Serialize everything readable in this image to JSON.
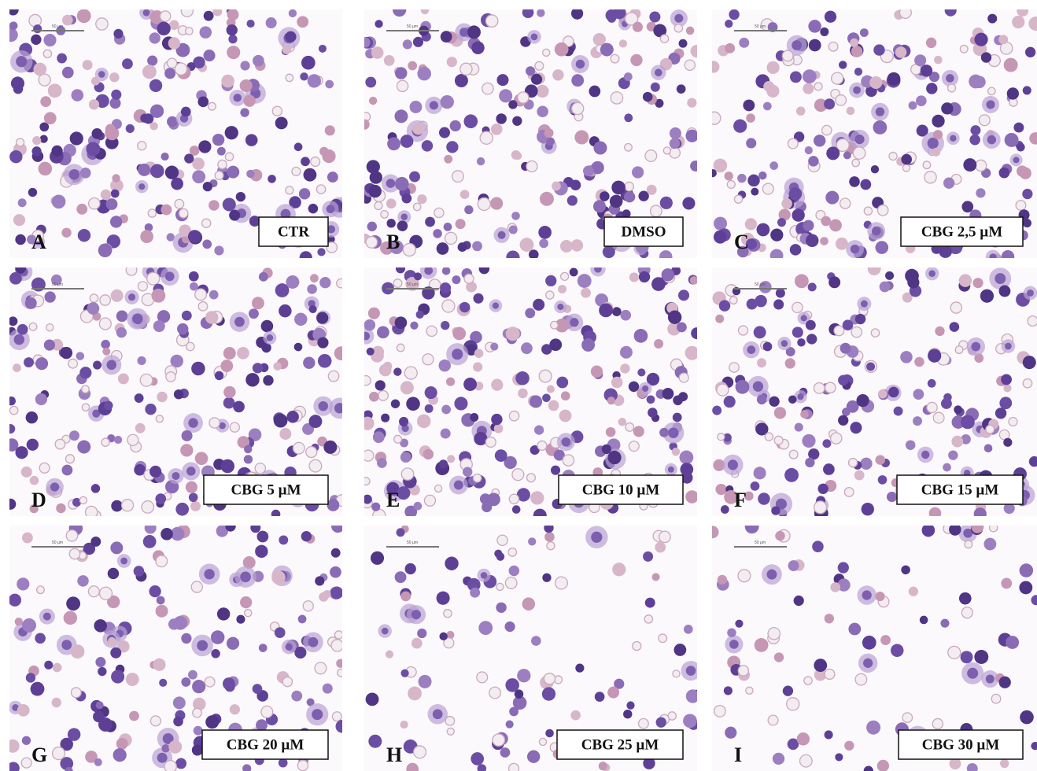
{
  "panels": [
    {
      "letter": "A",
      "label": "CTR",
      "scale": "50 µm"
    },
    {
      "letter": "B",
      "label": "DMSO",
      "scale": "50 µm"
    },
    {
      "letter": "C",
      "label": "CBG 2,5 µM",
      "scale": "50 µm"
    },
    {
      "letter": "D",
      "label": "CBG 5 µM",
      "scale": "50 µm"
    },
    {
      "letter": "E",
      "label": "CBG 10 µM",
      "scale": "50 µm"
    },
    {
      "letter": "F",
      "label": "CBG 15 µM",
      "scale": "50 µm"
    },
    {
      "letter": "G",
      "label": "CBG 20 µM",
      "scale": "50 µm"
    },
    {
      "letter": "H",
      "label": "CBG 25 µM",
      "scale": "50 µm"
    },
    {
      "letter": "I",
      "label": "CBG 30 µM",
      "scale": "50 µm"
    }
  ]
}
